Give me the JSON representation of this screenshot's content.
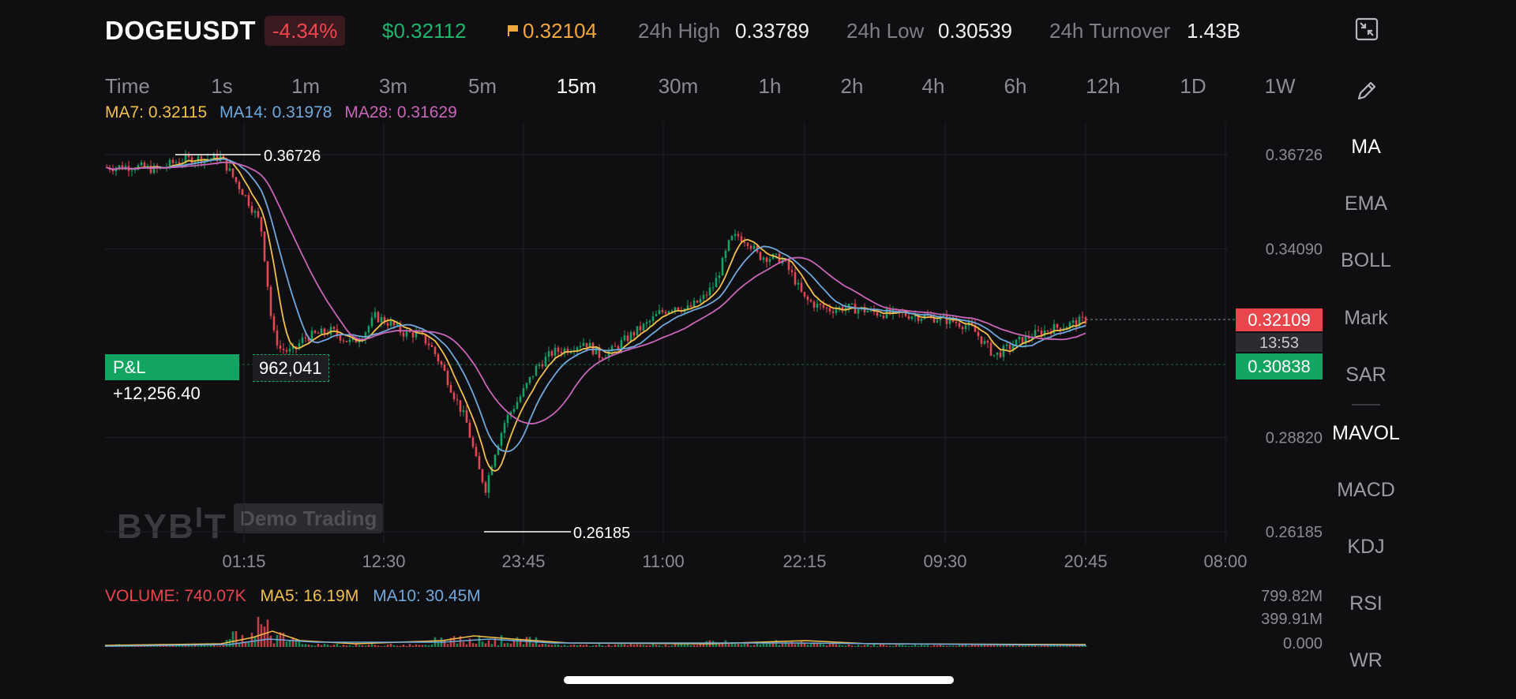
{
  "header": {
    "symbol": "DOGEUSDT",
    "change_pct": "-4.34%",
    "last_price": "$0.32112",
    "mark_price": "0.32104",
    "high_label": "24h High",
    "high_value": "0.33789",
    "low_label": "24h Low",
    "low_value": "0.30539",
    "turnover_label": "24h Turnover",
    "turnover_value": "1.43B"
  },
  "timeframes": [
    "Time",
    "1s",
    "1m",
    "3m",
    "5m",
    "15m",
    "30m",
    "1h",
    "2h",
    "4h",
    "6h",
    "12h",
    "1D",
    "1W"
  ],
  "active_timeframe": "15m",
  "ma_legend": {
    "ma7": "MA7: 0.32115",
    "ma14": "MA14: 0.31978",
    "ma28": "MA28: 0.31629"
  },
  "toolbar": {
    "items": [
      "MA",
      "EMA",
      "BOLL",
      "Mark",
      "SAR",
      "MAVOL",
      "MACD",
      "KDJ",
      "RSI",
      "WR"
    ],
    "active": [
      "MA",
      "MAVOL"
    ]
  },
  "chart": {
    "y_ticks": [
      "0.36726",
      "0.34090",
      "0.28820",
      "0.26185"
    ],
    "x_ticks": [
      "01:15",
      "12:30",
      "23:45",
      "11:00",
      "22:15",
      "09:30",
      "20:45",
      "08:00"
    ],
    "high_marker": "0.36726",
    "low_marker": "0.26185",
    "current_price": "0.32109",
    "countdown": "13:53",
    "entry_price": "0.30838",
    "pnl_label": "P&L +12,256.40",
    "position_qty": "962,041"
  },
  "watermark": {
    "logo": "BYBIT",
    "demo": "Demo Trading"
  },
  "volume": {
    "legend_volume": "VOLUME: 740.07K",
    "legend_ma5": "MA5: 16.19M",
    "legend_ma10": "MA10: 30.45M",
    "y_ticks": [
      "799.82M",
      "399.91M",
      "0.000"
    ]
  },
  "colors": {
    "up": "#12a561",
    "down": "#e8454c",
    "ma7": "#f2c04a",
    "ma14": "#6fa8dc",
    "ma28": "#c965b8",
    "accent_orange": "#f2a73b"
  },
  "icons": {
    "expand": "collapse-arrows-icon",
    "draw": "pencil-icon",
    "flag": "flag-icon"
  }
}
